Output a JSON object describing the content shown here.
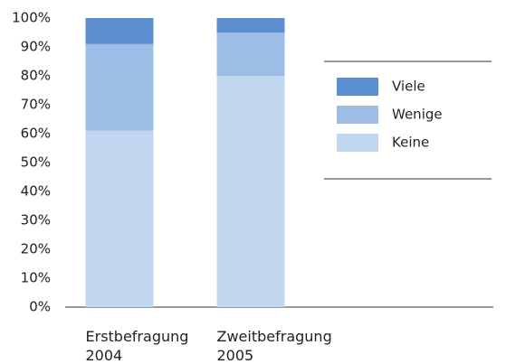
{
  "chart_data": {
    "type": "stacked_bar",
    "categories": [
      "Erstbefragung 2004",
      "Zweitbefragung 2005"
    ],
    "series": [
      {
        "name": "Keine",
        "color": "#c0d7ef",
        "values": [
          61,
          80
        ]
      },
      {
        "name": "Wenige",
        "color": "#9dbde6",
        "values": [
          30,
          15
        ]
      },
      {
        "name": "Viele",
        "color": "#5b8fcf",
        "values": [
          9,
          5
        ]
      }
    ],
    "ylim": [
      0,
      100
    ],
    "yticks": [
      {
        "value": 0,
        "label": "0%"
      },
      {
        "value": 10,
        "label": "10%"
      },
      {
        "value": 20,
        "label": "20%"
      },
      {
        "value": 30,
        "label": "30%"
      },
      {
        "value": 40,
        "label": "40%"
      },
      {
        "value": 50,
        "label": "50%"
      },
      {
        "value": 60,
        "label": "60%"
      },
      {
        "value": 70,
        "label": "70%"
      },
      {
        "value": 80,
        "label": "80%"
      },
      {
        "value": 90,
        "label": "90%"
      },
      {
        "value": 100,
        "label": "100%"
      }
    ],
    "legend": "right"
  }
}
